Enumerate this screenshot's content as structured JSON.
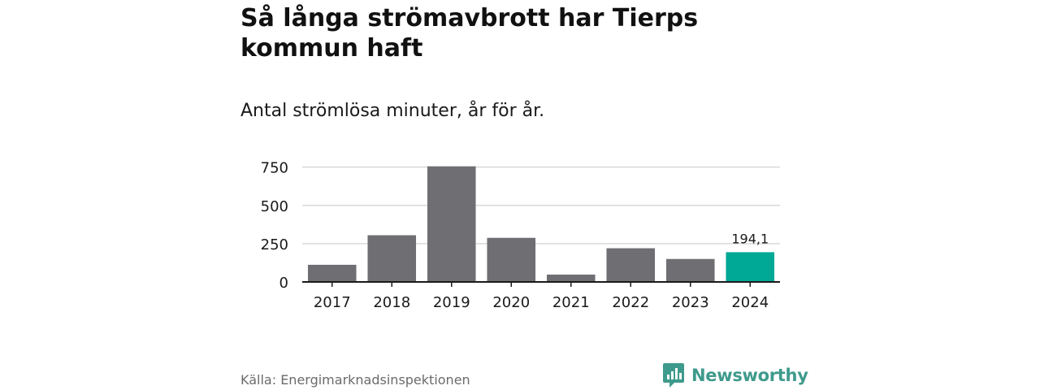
{
  "title": "Så långa strömavbrott har Tierps kommun haft",
  "subtitle": "Antal strömlösa minuter, år för år.",
  "source": "Källa: Energimarknadsinspektionen",
  "brand": "Newsworthy",
  "colors": {
    "bar": "#6f6e73",
    "highlight": "#00a896",
    "grid": "#d9d9d9",
    "axis": "#1a1a1a",
    "brand": "#3e9a8c"
  },
  "chart_data": {
    "type": "bar",
    "categories": [
      "2017",
      "2018",
      "2019",
      "2020",
      "2021",
      "2022",
      "2023",
      "2024"
    ],
    "values": [
      112,
      305,
      755,
      288,
      48,
      220,
      150,
      194.1
    ],
    "ylim": [
      0,
      780
    ],
    "yticks": [
      0,
      250,
      500,
      750
    ],
    "ytick_labels": [
      "0",
      "250",
      "500",
      "750"
    ],
    "highlight_index": 7,
    "annotations": [
      {
        "category": "2024",
        "text": "194,1"
      }
    ],
    "grid": true,
    "xlabel": "",
    "ylabel": ""
  }
}
